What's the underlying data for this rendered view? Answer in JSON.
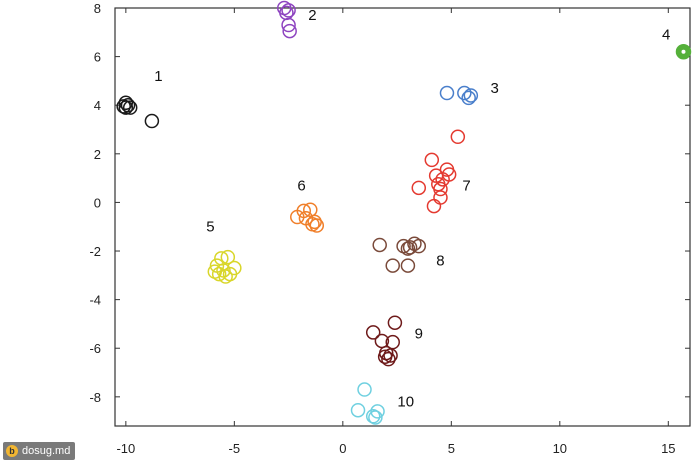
{
  "chart_data": {
    "type": "scatter",
    "title": "",
    "xlabel": "",
    "ylabel": "",
    "xlim": [
      -10.5,
      16
    ],
    "ylim": [
      -9.2,
      8
    ],
    "x_ticks": [
      -10,
      -5,
      0,
      5,
      10,
      15
    ],
    "y_ticks": [
      -8,
      -6,
      -4,
      -2,
      0,
      2,
      4,
      6,
      8
    ],
    "grid": false,
    "series": [
      {
        "name": "1",
        "color": "#1a1a1a",
        "label_pos": [
          -8.5,
          5.0
        ],
        "points": [
          [
            -10.0,
            4.1
          ],
          [
            -9.9,
            4.0
          ],
          [
            -10.1,
            3.95
          ],
          [
            -9.8,
            3.9
          ],
          [
            -10.0,
            3.9
          ],
          [
            -8.8,
            3.35
          ]
        ]
      },
      {
        "name": "2",
        "color": "#8e44c0",
        "label_pos": [
          -1.4,
          7.5
        ],
        "points": [
          [
            -2.7,
            8.0
          ],
          [
            -2.5,
            7.9
          ],
          [
            -2.6,
            7.8
          ],
          [
            -2.5,
            7.3
          ],
          [
            -2.45,
            7.05
          ]
        ]
      },
      {
        "name": "3",
        "color": "#4a7fcb",
        "label_pos": [
          7.0,
          4.5
        ],
        "points": [
          [
            4.8,
            4.5
          ],
          [
            5.6,
            4.5
          ],
          [
            5.9,
            4.4
          ],
          [
            5.8,
            4.3
          ]
        ]
      },
      {
        "name": "4",
        "color": "#55b03a",
        "label_pos": [
          14.9,
          6.7
        ],
        "filled": true,
        "points": [
          [
            15.7,
            6.2
          ]
        ]
      },
      {
        "name": "5",
        "color": "#d9d62a",
        "label_pos": [
          -6.1,
          -1.2
        ],
        "points": [
          [
            -5.6,
            -2.3
          ],
          [
            -5.3,
            -2.25
          ],
          [
            -5.0,
            -2.7
          ],
          [
            -5.8,
            -2.6
          ],
          [
            -5.5,
            -2.8
          ],
          [
            -5.2,
            -2.95
          ],
          [
            -5.7,
            -2.95
          ],
          [
            -5.4,
            -3.05
          ],
          [
            -5.9,
            -2.85
          ]
        ]
      },
      {
        "name": "6",
        "color": "#f07f2a",
        "label_pos": [
          -1.9,
          0.5
        ],
        "points": [
          [
            -1.8,
            -0.35
          ],
          [
            -1.5,
            -0.3
          ],
          [
            -2.1,
            -0.6
          ],
          [
            -1.7,
            -0.65
          ],
          [
            -1.3,
            -0.8
          ],
          [
            -1.2,
            -0.95
          ],
          [
            -1.4,
            -0.9
          ]
        ]
      },
      {
        "name": "7",
        "color": "#e43a30",
        "label_pos": [
          5.7,
          0.5
        ],
        "points": [
          [
            5.3,
            2.7
          ],
          [
            4.1,
            1.75
          ],
          [
            4.8,
            1.35
          ],
          [
            4.3,
            1.1
          ],
          [
            4.9,
            1.15
          ],
          [
            4.6,
            0.95
          ],
          [
            4.4,
            0.75
          ],
          [
            4.5,
            0.55
          ],
          [
            3.5,
            0.6
          ],
          [
            4.5,
            0.2
          ],
          [
            4.2,
            -0.15
          ]
        ]
      },
      {
        "name": "8",
        "color": "#7a4a3a",
        "label_pos": [
          4.5,
          -2.6
        ],
        "points": [
          [
            1.7,
            -1.75
          ],
          [
            2.8,
            -1.8
          ],
          [
            3.1,
            -1.85
          ],
          [
            3.3,
            -1.7
          ],
          [
            3.5,
            -1.8
          ],
          [
            3.0,
            -1.9
          ],
          [
            2.3,
            -2.6
          ],
          [
            3.0,
            -2.6
          ]
        ]
      },
      {
        "name": "9",
        "color": "#6e1a1a",
        "label_pos": [
          3.5,
          -5.6
        ],
        "points": [
          [
            2.4,
            -4.95
          ],
          [
            1.4,
            -5.35
          ],
          [
            1.8,
            -5.7
          ],
          [
            2.3,
            -5.75
          ],
          [
            2.0,
            -6.2
          ],
          [
            2.2,
            -6.3
          ],
          [
            2.1,
            -6.45
          ],
          [
            1.95,
            -6.35
          ]
        ]
      },
      {
        "name": "10",
        "color": "#6fd0e0",
        "label_pos": [
          2.9,
          -8.4
        ],
        "points": [
          [
            1.0,
            -7.7
          ],
          [
            0.7,
            -8.55
          ],
          [
            1.6,
            -8.6
          ],
          [
            1.4,
            -8.8
          ],
          [
            1.5,
            -8.85
          ]
        ]
      }
    ]
  },
  "watermark": {
    "logo": "b",
    "text": "dosug.md"
  }
}
